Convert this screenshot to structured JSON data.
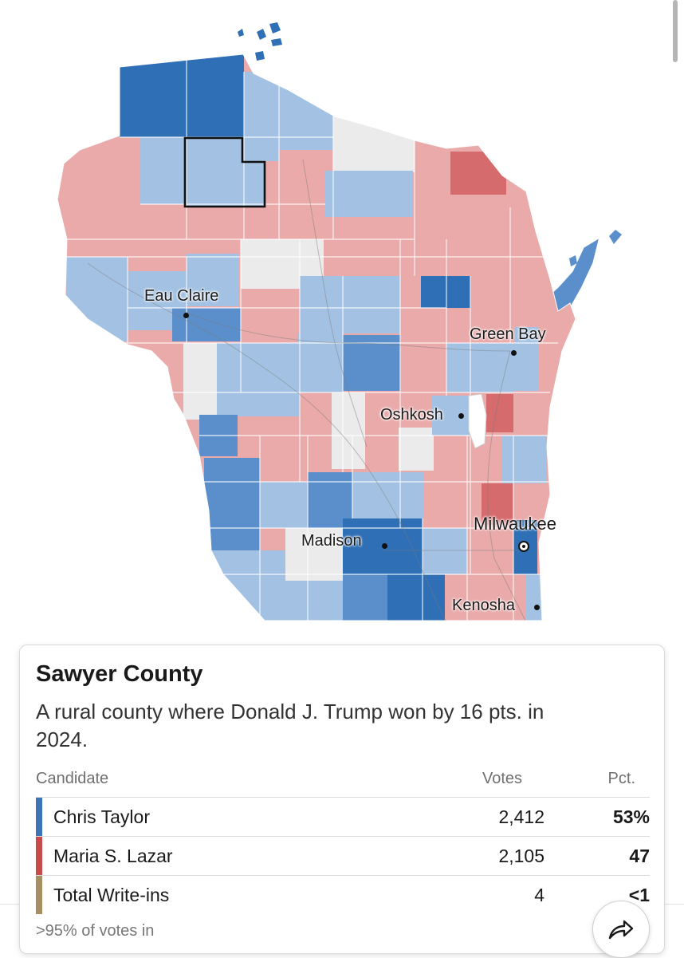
{
  "map": {
    "colors": {
      "dem_strong": "#2f6fb5",
      "dem_medium": "#5b8fcb",
      "dem_light": "#a3c2e3",
      "rep_strong": "#d66b6d",
      "rep_light": "#eaaaaa",
      "tossup": "#ebebeb",
      "selected_outline": "#111111"
    },
    "selected_county": "Sawyer County",
    "cities": [
      {
        "name": "Eau Claire",
        "marker": "dot"
      },
      {
        "name": "Green Bay",
        "marker": "dot"
      },
      {
        "name": "Oshkosh",
        "marker": "dot"
      },
      {
        "name": "Madison",
        "marker": "dot"
      },
      {
        "name": "Milwaukee",
        "marker": "ring"
      },
      {
        "name": "Kenosha",
        "marker": "dot"
      }
    ]
  },
  "card": {
    "title": "Sawyer County",
    "description": "A rural county where Donald J. Trump won by 16 pts. in 2024.",
    "headers": {
      "candidate": "Candidate",
      "votes": "Votes",
      "pct": "Pct."
    },
    "rows": [
      {
        "name": "Chris Taylor",
        "votes": "2,412",
        "pct": "53%",
        "color": "#3d74b5"
      },
      {
        "name": "Maria S. Lazar",
        "votes": "2,105",
        "pct": "47",
        "color": "#c94a4a"
      },
      {
        "name": "Total Write-ins",
        "votes": "4",
        "pct": "<1",
        "color": "#a69063"
      }
    ],
    "footnote": ">95% of votes in",
    "share_icon": "share-arrow-icon"
  }
}
